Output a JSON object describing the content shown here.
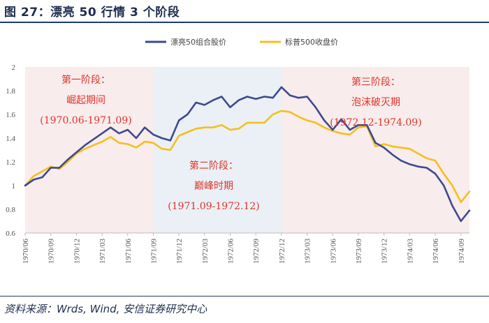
{
  "header": {
    "title": "图 27：漂亮 50 行情 3 个阶段"
  },
  "footer": {
    "source": "资料来源：Wrds, Wind, 安信证券研究中心"
  },
  "colors": {
    "series1": "#3c4a8f",
    "series2": "#f5bf1e",
    "phase1_bg": "#f8ecec",
    "phase2_bg": "#eaf0f5",
    "phase3_bg": "#f8ecec",
    "phase_text": "#e0352b"
  },
  "phases": [
    {
      "line1": "第一阶段：",
      "line2": "崛起期间",
      "range": "(1970.06-1971.09)",
      "x_start": "1970/06",
      "x_end": "1971/09"
    },
    {
      "line1": "第二阶段：",
      "line2": "巅峰时期",
      "range": "(1971.09-1972.12)",
      "x_start": "1971/09",
      "x_end": "1972/12"
    },
    {
      "line1": "第三阶段：",
      "line2": "泡沫破灭期",
      "range": "(1972.12-1974.09)",
      "x_start": "1972/12",
      "x_end": "1974/10"
    }
  ],
  "chart_data": {
    "type": "line",
    "title": "",
    "xlabel": "",
    "ylabel": "",
    "ylim": [
      0.6,
      2.0
    ],
    "y_ticks": [
      "0.6",
      "0.8",
      "1",
      "1.2",
      "1.4",
      "1.6",
      "1.8",
      "2"
    ],
    "x_tick_labels": [
      "1970/06",
      "1970/09",
      "1970/12",
      "1971/03",
      "1971/06",
      "1971/09",
      "1971/12",
      "1972/03",
      "1972/06",
      "1972/09",
      "1972/12",
      "1973/03",
      "1973/06",
      "1973/09",
      "1973/12",
      "1974/03",
      "1974/06",
      "1974/09"
    ],
    "legend": {
      "position": "top-center"
    },
    "grid": false,
    "series": [
      {
        "name": "漂亮50组合股价",
        "points": [
          [
            "1970/06",
            1.0
          ],
          [
            "1970/07",
            1.05
          ],
          [
            "1970/08",
            1.07
          ],
          [
            "1970/09",
            1.15
          ],
          [
            "1970/10",
            1.15
          ],
          [
            "1970/11",
            1.22
          ],
          [
            "1970/12",
            1.28
          ],
          [
            "1971/01",
            1.34
          ],
          [
            "1971/02",
            1.39
          ],
          [
            "1971/03",
            1.44
          ],
          [
            "1971/04",
            1.49
          ],
          [
            "1971/05",
            1.44
          ],
          [
            "1971/06",
            1.47
          ],
          [
            "1971/07",
            1.4
          ],
          [
            "1971/08",
            1.49
          ],
          [
            "1971/09",
            1.43
          ],
          [
            "1971/10",
            1.4
          ],
          [
            "1971/11",
            1.38
          ],
          [
            "1971/12",
            1.55
          ],
          [
            "1972/01",
            1.6
          ],
          [
            "1972/02",
            1.7
          ],
          [
            "1972/03",
            1.68
          ],
          [
            "1972/04",
            1.72
          ],
          [
            "1972/05",
            1.75
          ],
          [
            "1972/06",
            1.66
          ],
          [
            "1972/07",
            1.72
          ],
          [
            "1972/08",
            1.75
          ],
          [
            "1972/09",
            1.73
          ],
          [
            "1972/10",
            1.75
          ],
          [
            "1972/11",
            1.74
          ],
          [
            "1972/12",
            1.83
          ],
          [
            "1973/01",
            1.76
          ],
          [
            "1973/02",
            1.74
          ],
          [
            "1973/03",
            1.75
          ],
          [
            "1973/04",
            1.66
          ],
          [
            "1973/05",
            1.55
          ],
          [
            "1973/06",
            1.47
          ],
          [
            "1973/07",
            1.56
          ],
          [
            "1973/08",
            1.47
          ],
          [
            "1973/09",
            1.51
          ],
          [
            "1973/10",
            1.51
          ],
          [
            "1973/11",
            1.36
          ],
          [
            "1973/12",
            1.32
          ],
          [
            "1974/01",
            1.26
          ],
          [
            "1974/02",
            1.21
          ],
          [
            "1974/03",
            1.18
          ],
          [
            "1974/04",
            1.16
          ],
          [
            "1974/05",
            1.15
          ],
          [
            "1974/06",
            1.1
          ],
          [
            "1974/07",
            1.0
          ],
          [
            "1974/08",
            0.83
          ],
          [
            "1974/09",
            0.7
          ],
          [
            "1974/10",
            0.79
          ]
        ]
      },
      {
        "name": "标普500收盘价",
        "points": [
          [
            "1970/06",
            1.0
          ],
          [
            "1970/07",
            1.08
          ],
          [
            "1970/08",
            1.12
          ],
          [
            "1970/09",
            1.16
          ],
          [
            "1970/10",
            1.14
          ],
          [
            "1970/11",
            1.2
          ],
          [
            "1970/12",
            1.27
          ],
          [
            "1971/01",
            1.31
          ],
          [
            "1971/02",
            1.34
          ],
          [
            "1971/03",
            1.37
          ],
          [
            "1971/04",
            1.41
          ],
          [
            "1971/05",
            1.36
          ],
          [
            "1971/06",
            1.35
          ],
          [
            "1971/07",
            1.32
          ],
          [
            "1971/08",
            1.37
          ],
          [
            "1971/09",
            1.36
          ],
          [
            "1971/10",
            1.31
          ],
          [
            "1971/11",
            1.3
          ],
          [
            "1971/12",
            1.42
          ],
          [
            "1972/01",
            1.45
          ],
          [
            "1972/02",
            1.48
          ],
          [
            "1972/03",
            1.49
          ],
          [
            "1972/04",
            1.49
          ],
          [
            "1972/05",
            1.51
          ],
          [
            "1972/06",
            1.47
          ],
          [
            "1972/07",
            1.48
          ],
          [
            "1972/08",
            1.53
          ],
          [
            "1972/09",
            1.53
          ],
          [
            "1972/10",
            1.53
          ],
          [
            "1972/11",
            1.6
          ],
          [
            "1972/12",
            1.63
          ],
          [
            "1973/01",
            1.62
          ],
          [
            "1973/02",
            1.58
          ],
          [
            "1973/03",
            1.55
          ],
          [
            "1973/04",
            1.53
          ],
          [
            "1973/05",
            1.49
          ],
          [
            "1973/06",
            1.46
          ],
          [
            "1973/07",
            1.44
          ],
          [
            "1973/08",
            1.43
          ],
          [
            "1973/09",
            1.49
          ],
          [
            "1973/10",
            1.5
          ],
          [
            "1973/11",
            1.33
          ],
          [
            "1973/12",
            1.35
          ],
          [
            "1974/01",
            1.33
          ],
          [
            "1974/02",
            1.32
          ],
          [
            "1974/03",
            1.31
          ],
          [
            "1974/04",
            1.27
          ],
          [
            "1974/05",
            1.23
          ],
          [
            "1974/06",
            1.21
          ],
          [
            "1974/07",
            1.1
          ],
          [
            "1974/08",
            1.0
          ],
          [
            "1974/09",
            0.86
          ],
          [
            "1974/10",
            0.95
          ]
        ]
      }
    ]
  }
}
